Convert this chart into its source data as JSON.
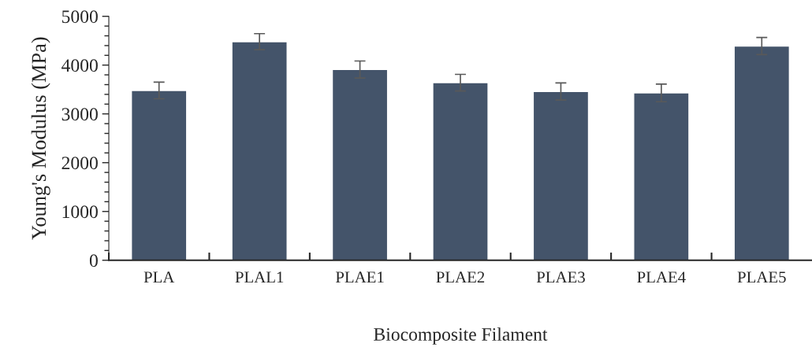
{
  "chart_data": {
    "type": "bar",
    "xlabel": "Biocomposite Filament",
    "ylabel": "Young's Modulus (MPa)",
    "categories": [
      "PLA",
      "PLAL1",
      "PLAE1",
      "PLAE2",
      "PLAE3",
      "PLAE4",
      "PLAE5"
    ],
    "values": [
      3480,
      4480,
      3910,
      3640,
      3460,
      3430,
      4390
    ],
    "errors": [
      170,
      165,
      175,
      170,
      175,
      180,
      175
    ],
    "color": "#44546a",
    "ylim": [
      0,
      5000
    ],
    "yticks": [
      0,
      1000,
      2000,
      3000,
      4000,
      5000
    ],
    "grid": false,
    "legend": false
  }
}
